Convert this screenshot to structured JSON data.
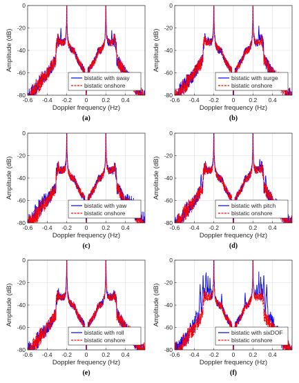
{
  "chart_data": [
    {
      "type": "line",
      "panel_label": "(a)",
      "xlabel": "Doppler frequency (Hz)",
      "ylabel": "Amplitude (dB)",
      "xlim": [
        -0.6,
        0.6
      ],
      "ylim": [
        -80,
        0
      ],
      "xticks": [
        -0.6,
        -0.4,
        -0.2,
        0,
        0.2,
        0.4
      ],
      "xtick_labels": [
        "-0.6",
        "-0.4",
        "-0.2",
        "0",
        "0.2",
        "0.4"
      ],
      "yticks": [
        -80,
        -60,
        -40,
        -20,
        0
      ],
      "ytick_labels": [
        "-80",
        "-60",
        "-40",
        "-20",
        "0"
      ],
      "grid": true,
      "legend_position": "lower-right",
      "motion": "sway",
      "series": [
        {
          "name": "bistatic with sway",
          "color": "#0000ff",
          "style": "solid"
        },
        {
          "name": "bistatic onshore",
          "color": "#ff0000",
          "style": "dashed"
        }
      ]
    },
    {
      "type": "line",
      "panel_label": "(b)",
      "xlabel": "Doppler frequency (Hz)",
      "ylabel": "Amplitude (dB)",
      "xlim": [
        -0.6,
        0.6
      ],
      "ylim": [
        -80,
        0
      ],
      "xticks": [
        -0.6,
        -0.4,
        -0.2,
        0,
        0.2,
        0.4
      ],
      "xtick_labels": [
        "-0.6",
        "-0.4",
        "-0.2",
        "0",
        "0.2",
        "0.4"
      ],
      "yticks": [
        -80,
        -60,
        -40,
        -20,
        0
      ],
      "ytick_labels": [
        "-80",
        "-60",
        "-40",
        "-20",
        "0"
      ],
      "grid": true,
      "legend_position": "lower-right",
      "motion": "surge",
      "series": [
        {
          "name": "bistatic with surge",
          "color": "#0000ff",
          "style": "solid"
        },
        {
          "name": "bistatic onshore",
          "color": "#ff0000",
          "style": "dashed"
        }
      ]
    },
    {
      "type": "line",
      "panel_label": "(c)",
      "xlabel": "Doppler frequency (Hz)",
      "ylabel": "Amplitude (dB)",
      "xlim": [
        -0.6,
        0.6
      ],
      "ylim": [
        -80,
        0
      ],
      "xticks": [
        -0.6,
        -0.4,
        -0.2,
        0,
        0.2,
        0.4
      ],
      "xtick_labels": [
        "-0.6",
        "-0.4",
        "-0.2",
        "0",
        "0.2",
        "0.4"
      ],
      "yticks": [
        -80,
        -60,
        -40,
        -20,
        0
      ],
      "ytick_labels": [
        "-80",
        "-60",
        "-40",
        "-20",
        "0"
      ],
      "grid": true,
      "legend_position": "lower-right",
      "motion": "yaw",
      "series": [
        {
          "name": "bistatic with yaw",
          "color": "#0000ff",
          "style": "solid"
        },
        {
          "name": "bistatic onshore",
          "color": "#ff0000",
          "style": "dashed"
        }
      ]
    },
    {
      "type": "line",
      "panel_label": "(d)",
      "xlabel": "Doppler frequency (Hz)",
      "ylabel": "Amplitude (dB)",
      "xlim": [
        -0.6,
        0.6
      ],
      "ylim": [
        -80,
        0
      ],
      "xticks": [
        -0.6,
        -0.4,
        -0.2,
        0,
        0.2,
        0.4
      ],
      "xtick_labels": [
        "-0.6",
        "-0.4",
        "-0.2",
        "0",
        "0.2",
        "0.4"
      ],
      "yticks": [
        -80,
        -60,
        -40,
        -20,
        0
      ],
      "ytick_labels": [
        "-80",
        "-60",
        "-40",
        "-20",
        "0"
      ],
      "grid": true,
      "legend_position": "lower-right",
      "motion": "pitch",
      "series": [
        {
          "name": "bistatic with pitch",
          "color": "#0000ff",
          "style": "solid"
        },
        {
          "name": "bistatic onshore",
          "color": "#ff0000",
          "style": "dashed"
        }
      ]
    },
    {
      "type": "line",
      "panel_label": "(e)",
      "xlabel": "Doppler frequency (Hz)",
      "ylabel": "Amplitude (dB)",
      "xlim": [
        -0.6,
        0.6
      ],
      "ylim": [
        -80,
        0
      ],
      "xticks": [
        -0.6,
        -0.4,
        -0.2,
        0,
        0.2,
        0.4
      ],
      "xtick_labels": [
        "-0.6",
        "-0.4",
        "-0.2",
        "0",
        "0.2",
        "0.4"
      ],
      "yticks": [
        -80,
        -60,
        -40,
        -20,
        0
      ],
      "ytick_labels": [
        "-80",
        "-60",
        "-40",
        "-20",
        "0"
      ],
      "grid": true,
      "legend_position": "lower-right",
      "motion": "roll",
      "series": [
        {
          "name": "bistatic with roll",
          "color": "#0000ff",
          "style": "solid"
        },
        {
          "name": "bistatic onshore",
          "color": "#ff0000",
          "style": "dashed"
        }
      ]
    },
    {
      "type": "line",
      "panel_label": "(f)",
      "xlabel": "Doppler frequency (Hz)",
      "ylabel": "Amplitude (dB)",
      "xlim": [
        -0.6,
        0.6
      ],
      "ylim": [
        -80,
        0
      ],
      "xticks": [
        -0.6,
        -0.4,
        -0.2,
        0,
        0.2,
        0.4
      ],
      "xtick_labels": [
        "-0.6",
        "-0.4",
        "-0.2",
        "0",
        "0.2",
        "0.4"
      ],
      "yticks": [
        -80,
        -60,
        -40,
        -20,
        0
      ],
      "ytick_labels": [
        "-80",
        "-60",
        "-40",
        "-20",
        "0"
      ],
      "grid": true,
      "legend_position": "lower-right",
      "motion": "sixDOF",
      "series": [
        {
          "name": "bistatic with sixDOF",
          "color": "#0000ff",
          "style": "solid"
        },
        {
          "name": "bistatic onshore",
          "color": "#ff0000",
          "style": "dashed"
        }
      ]
    }
  ]
}
